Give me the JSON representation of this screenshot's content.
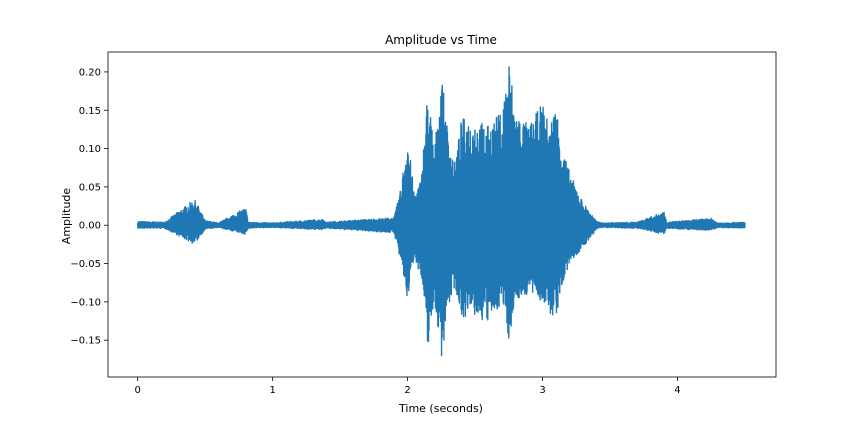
{
  "chart_data": {
    "type": "line",
    "title": "Amplitude vs Time",
    "xlabel": "Time (seconds)",
    "ylabel": "Amplitude",
    "xlim": [
      -0.22,
      4.73
    ],
    "ylim": [
      -0.198,
      0.226
    ],
    "x_ticks": [
      0,
      1,
      2,
      3,
      4
    ],
    "x_tick_labels": [
      "0",
      "1",
      "2",
      "3",
      "4"
    ],
    "y_ticks": [
      -0.15,
      -0.1,
      -0.05,
      0.0,
      0.05,
      0.1,
      0.15,
      0.2
    ],
    "y_tick_labels": [
      "−0.15",
      "−0.10",
      "−0.05",
      "0.00",
      "0.05",
      "0.10",
      "0.15",
      "0.20"
    ],
    "grid": false,
    "series": [
      {
        "color": "#1f77b4",
        "envelope_time": [
          0.0,
          0.2,
          0.42,
          0.45,
          0.5,
          0.6,
          0.8,
          0.82,
          1.0,
          1.38,
          1.39,
          1.9,
          1.95,
          2.0,
          2.05,
          2.1,
          2.15,
          2.2,
          2.25,
          2.3,
          2.35,
          2.4,
          2.5,
          2.6,
          2.7,
          2.75,
          2.8,
          2.9,
          3.0,
          3.05,
          3.1,
          3.15,
          3.2,
          3.3,
          3.4,
          3.45,
          3.7,
          3.9,
          3.92,
          4.25,
          4.3,
          4.5
        ],
        "envelope_upper": [
          0.005,
          0.004,
          0.034,
          0.025,
          0.006,
          0.003,
          0.023,
          0.004,
          0.003,
          0.008,
          0.004,
          0.01,
          0.048,
          0.12,
          0.04,
          0.06,
          0.18,
          0.1,
          0.2,
          0.12,
          0.08,
          0.14,
          0.14,
          0.13,
          0.15,
          0.22,
          0.15,
          0.13,
          0.16,
          0.13,
          0.16,
          0.1,
          0.07,
          0.03,
          0.005,
          0.003,
          0.004,
          0.018,
          0.004,
          0.009,
          0.003,
          0.004
        ],
        "envelope_lower": [
          -0.004,
          -0.004,
          -0.025,
          -0.018,
          -0.005,
          -0.003,
          -0.012,
          -0.004,
          -0.003,
          -0.006,
          -0.004,
          -0.01,
          -0.05,
          -0.1,
          -0.04,
          -0.07,
          -0.16,
          -0.1,
          -0.175,
          -0.11,
          -0.08,
          -0.12,
          -0.12,
          -0.13,
          -0.1,
          -0.15,
          -0.1,
          -0.09,
          -0.1,
          -0.12,
          -0.12,
          -0.08,
          -0.05,
          -0.03,
          -0.005,
          -0.003,
          -0.004,
          -0.012,
          -0.004,
          -0.007,
          -0.003,
          -0.004
        ]
      }
    ]
  }
}
